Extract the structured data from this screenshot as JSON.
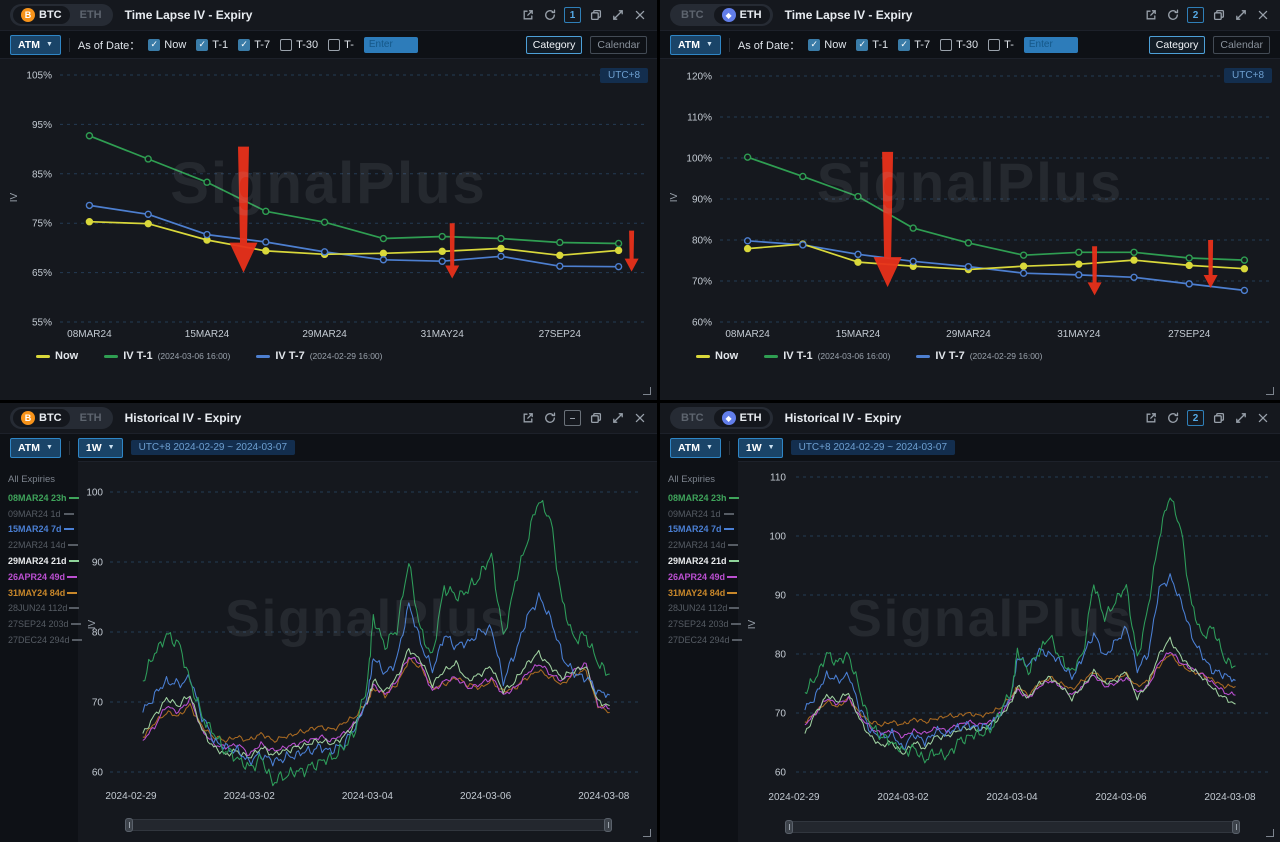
{
  "watermark": "SignalPlus",
  "colors": {
    "accent_blue": "#2f86c6",
    "arrow_red": "#e8301a",
    "panel_bg": "#15181e",
    "now_yellow": "#d9d83b",
    "t1_green": "#2f9e52",
    "t7_blue": "#4d7fd0"
  },
  "panels": {
    "tl": {
      "coin_btc": "BTC",
      "coin_eth": "ETH",
      "active_coin": "BTC",
      "title": "Time Lapse IV - Expiry",
      "badge": "1",
      "utc": "UTC+8"
    },
    "tr": {
      "coin_btc": "BTC",
      "coin_eth": "ETH",
      "active_coin": "ETH",
      "title": "Time Lapse IV - Expiry",
      "badge": "2",
      "utc": "UTC+8"
    },
    "bl": {
      "coin_btc": "BTC",
      "coin_eth": "ETH",
      "active_coin": "BTC",
      "title": "Historical IV - Expiry",
      "badge": "–"
    },
    "br": {
      "coin_btc": "BTC",
      "coin_eth": "ETH",
      "active_coin": "ETH",
      "title": "Historical IV - Expiry",
      "badge": "2"
    }
  },
  "timelapse_toolbar": {
    "atm": "ATM",
    "as_of_date": "As of Date：",
    "options": [
      {
        "label": "Now",
        "checked": true
      },
      {
        "label": "T-1",
        "checked": true
      },
      {
        "label": "T-7",
        "checked": true
      },
      {
        "label": "T-30",
        "checked": false
      },
      {
        "label": "T-",
        "checked": false
      }
    ],
    "enter_placeholder": "Enter",
    "category": "Category",
    "calendar": "Calendar",
    "active_view": "Category"
  },
  "historical_toolbar": {
    "atm": "ATM",
    "period": "1W",
    "range": "UTC+8 2024-02-29 ~ 2024-03-07"
  },
  "timelapse_legend": [
    {
      "label": "Now",
      "sub": "",
      "color": "#d9d83b"
    },
    {
      "label": "IV T-1",
      "sub": "(2024-03-06 16:00)",
      "color": "#2f9e52"
    },
    {
      "label": "IV T-7",
      "sub": "(2024-02-29 16:00)",
      "color": "#4d7fd0"
    }
  ],
  "expiry_list": {
    "header": "All Expiries",
    "items": [
      {
        "label": "08MAR24 23h",
        "color": "#3fa45b",
        "dash": "#3fa45b",
        "selected": true
      },
      {
        "label": "09MAR24 1d",
        "color": "#565c64",
        "dash": "#565c64",
        "selected": false
      },
      {
        "label": "15MAR24 7d",
        "color": "#4a7fd4",
        "dash": "#4a7fd4",
        "selected": true
      },
      {
        "label": "22MAR24 14d",
        "color": "#565c64",
        "dash": "#565c64",
        "selected": false
      },
      {
        "label": "29MAR24 21d",
        "color": "#e8eaec",
        "dash": "#8fd49a",
        "selected": true
      },
      {
        "label": "26APR24 49d",
        "color": "#bb4fd1",
        "dash": "#bb4fd1",
        "selected": true
      },
      {
        "label": "31MAY24 84d",
        "color": "#c8872a",
        "dash": "#c8872a",
        "selected": true
      },
      {
        "label": "28JUN24 112d",
        "color": "#565c64",
        "dash": "#565c64",
        "selected": false
      },
      {
        "label": "27SEP24 203d",
        "color": "#565c64",
        "dash": "#565c64",
        "selected": false
      },
      {
        "label": "27DEC24 294d",
        "color": "#565c64",
        "dash": "#565c64",
        "selected": false
      }
    ]
  },
  "chart_data": [
    {
      "id": "tl",
      "type": "line",
      "title": "Time Lapse IV - Expiry (BTC, ATM)",
      "ylabel": "IV",
      "ylim": [
        55,
        105
      ],
      "grid": true,
      "legend_position": "bottom",
      "yticks": [
        "105%",
        "95%",
        "85%",
        "75%",
        "65%",
        "55%"
      ],
      "ytick_values": [
        105,
        95,
        85,
        75,
        65,
        55
      ],
      "x_categories": [
        "08MAR24",
        "09MAR24",
        "15MAR24",
        "22MAR24",
        "29MAR24",
        "26APR24",
        "31MAY24",
        "28JUN24",
        "27SEP24",
        "27DEC24"
      ],
      "x_tick_idx": [
        0,
        2,
        4,
        6,
        8
      ],
      "x_tick_labels": [
        "08MAR24",
        "15MAR24",
        "29MAR24",
        "31MAY24",
        "27SEP24"
      ],
      "series": [
        {
          "name": "Now",
          "color": "#d9d83b",
          "solid_dots": true,
          "values": [
            75.3,
            74.9,
            71.6,
            69.4,
            68.7,
            68.9,
            69.3,
            69.9,
            68.5,
            69.5
          ]
        },
        {
          "name": "IV T-1(2024-03-06 16:00)",
          "color": "#2f9e52",
          "solid_dots": false,
          "values": [
            92.7,
            88.0,
            83.3,
            77.4,
            75.2,
            71.9,
            72.3,
            71.9,
            71.1,
            70.9
          ]
        },
        {
          "name": "IV T-7(2024-02-29 16:00)",
          "color": "#4d7fd0",
          "solid_dots": false,
          "values": [
            78.6,
            76.8,
            72.7,
            71.2,
            69.2,
            67.6,
            67.3,
            68.3,
            66.3,
            66.2
          ]
        }
      ],
      "arrows": [
        {
          "cx_index": 1.6,
          "top": 90.5,
          "tip": 65.0,
          "size": "large"
        },
        {
          "cx_index": 5.15,
          "top": 75.0,
          "tip": 63.8,
          "size": "small"
        },
        {
          "cx_index": 8.2,
          "top": 73.5,
          "tip": 65.2,
          "size": "small"
        }
      ]
    },
    {
      "id": "tr",
      "type": "line",
      "title": "Time Lapse IV - Expiry (ETH, ATM)",
      "ylabel": "IV",
      "ylim": [
        60,
        120
      ],
      "grid": true,
      "legend_position": "bottom",
      "yticks": [
        "120%",
        "110%",
        "100%",
        "90%",
        "80%",
        "70%",
        "60%"
      ],
      "ytick_values": [
        120,
        110,
        100,
        90,
        80,
        70,
        60
      ],
      "x_categories": [
        "08MAR24",
        "09MAR24",
        "15MAR24",
        "22MAR24",
        "29MAR24",
        "26APR24",
        "31MAY24",
        "28JUN24",
        "27SEP24",
        "27DEC24"
      ],
      "x_tick_idx": [
        0,
        2,
        4,
        6,
        8
      ],
      "x_tick_labels": [
        "08MAR24",
        "15MAR24",
        "29MAR24",
        "31MAY24",
        "27SEP24"
      ],
      "series": [
        {
          "name": "Now",
          "color": "#d9d83b",
          "solid_dots": true,
          "values": [
            77.9,
            79.0,
            74.6,
            73.6,
            72.8,
            73.6,
            74.1,
            75.1,
            73.8,
            73.0
          ]
        },
        {
          "name": "IV T-1(2024-03-06 16:00)",
          "color": "#2f9e52",
          "solid_dots": false,
          "values": [
            100.2,
            95.5,
            90.6,
            82.9,
            79.3,
            76.3,
            77.0,
            77.0,
            75.6,
            75.1
          ]
        },
        {
          "name": "IV T-7(2024-02-29 16:00)",
          "color": "#4d7fd0",
          "solid_dots": false,
          "values": [
            79.8,
            78.8,
            76.5,
            74.8,
            73.5,
            71.9,
            71.5,
            70.9,
            69.3,
            67.7
          ]
        }
      ],
      "arrows": [
        {
          "cx_index": 1.45,
          "top": 101.5,
          "tip": 68.5,
          "size": "large"
        },
        {
          "cx_index": 5.2,
          "top": 78.5,
          "tip": 66.5,
          "size": "small"
        },
        {
          "cx_index": 7.3,
          "top": 80.0,
          "tip": 68.3,
          "size": "small"
        }
      ]
    },
    {
      "id": "bl",
      "type": "line",
      "title": "Historical IV - Expiry (BTC, ATM, 1W)",
      "ylabel": "IV",
      "ylim": [
        60,
        100
      ],
      "grid": true,
      "x_unit": "days since 2024-02-29 00:00 UTC+8",
      "yticks": [
        "100",
        "90",
        "80",
        "70",
        "60"
      ],
      "ytick_values": [
        100,
        90,
        80,
        70,
        60
      ],
      "x_tick_days": [
        0,
        2,
        4,
        6,
        8
      ],
      "x_tick_labels": [
        "2024-02-29",
        "2024-03-02",
        "2024-03-04",
        "2024-03-06",
        "2024-03-08"
      ],
      "x_keypoints": [
        0.2,
        0.4,
        0.6,
        0.8,
        1.0,
        1.2,
        1.4,
        1.6,
        1.8,
        2.0,
        2.2,
        2.4,
        2.6,
        2.8,
        3.0,
        3.2,
        3.4,
        3.6,
        3.8,
        4.0,
        4.1,
        4.3,
        4.5,
        4.7,
        4.9,
        5.1,
        5.3,
        5.5,
        5.7,
        5.9,
        6.1,
        6.3,
        6.5,
        6.7,
        6.9,
        7.1,
        7.3,
        7.5,
        7.7,
        7.9,
        8.1
      ],
      "series": [
        {
          "name": "08MAR24 23h",
          "color": "#2e9e5b",
          "values": [
            73,
            77,
            79.5,
            78.5,
            73,
            68,
            65.5,
            63,
            62,
            60.5,
            62,
            58.5,
            59.5,
            60,
            60.5,
            61.5,
            62,
            63.5,
            66,
            73,
            82,
            78,
            80.5,
            90,
            80,
            76.5,
            86.5,
            85,
            86,
            88,
            91,
            79,
            87,
            93,
            99,
            96,
            84,
            79,
            79.5,
            75.5,
            74
          ]
        },
        {
          "name": "15MAR24 7d",
          "color": "#4a7fd4",
          "values": [
            68.5,
            71,
            73,
            72.5,
            73.5,
            68,
            64.5,
            63.5,
            63,
            61.5,
            62.5,
            61.5,
            62,
            62.5,
            63,
            63.5,
            63,
            64,
            66.5,
            70.5,
            76.5,
            74,
            76,
            84,
            78.5,
            74.5,
            79.5,
            78,
            78.5,
            80,
            80.5,
            73,
            77,
            82,
            85,
            82,
            76.5,
            74,
            73.5,
            71.5,
            71
          ]
        },
        {
          "name": "29MAR24 21d",
          "color": "#9fd0a0",
          "values": [
            65.5,
            68,
            70.5,
            69.5,
            71,
            66,
            63.5,
            62.5,
            63,
            62,
            63.5,
            62.5,
            63,
            63.5,
            64,
            64.5,
            64,
            65,
            67,
            70,
            73,
            71.5,
            73.5,
            77.5,
            76,
            72.5,
            74.5,
            75.5,
            73,
            74,
            75,
            71.5,
            73,
            75.5,
            77,
            75,
            73.5,
            74.5,
            75,
            70,
            69.5
          ]
        },
        {
          "name": "26APR24 49d",
          "color": "#bb4fd1",
          "values": [
            64.5,
            66.5,
            69.5,
            68.5,
            70.5,
            66,
            64,
            63.5,
            64,
            62.5,
            64,
            63,
            63.5,
            64,
            64.5,
            65,
            64.5,
            65.5,
            67,
            70,
            72.5,
            71,
            73,
            76.5,
            75.5,
            71.5,
            73,
            73.5,
            72,
            72.5,
            73.5,
            71,
            72,
            74,
            75.5,
            74,
            73,
            74.5,
            75.5,
            69.5,
            69
          ]
        },
        {
          "name": "31MAY24 84d",
          "color": "#a96a22",
          "values": [
            65,
            67,
            68.5,
            68,
            69.5,
            66.5,
            65,
            64.5,
            65,
            64.5,
            65.5,
            64.5,
            65,
            65.5,
            66,
            66.5,
            66,
            67,
            68,
            70,
            72,
            71,
            72.5,
            76,
            75,
            72,
            72.5,
            73.5,
            72.5,
            72,
            73,
            71.5,
            72,
            73.5,
            74.5,
            73.5,
            72.5,
            74,
            74.5,
            69.5,
            68.5
          ]
        }
      ]
    },
    {
      "id": "br",
      "type": "line",
      "title": "Historical IV - Expiry (ETH, ATM, 1W)",
      "ylabel": "IV",
      "ylim": [
        60,
        110
      ],
      "grid": true,
      "x_unit": "days since 2024-02-29 00:00 UTC+8",
      "yticks": [
        "110",
        "100",
        "90",
        "80",
        "70",
        "60"
      ],
      "ytick_values": [
        110,
        100,
        90,
        80,
        70,
        60
      ],
      "x_tick_days": [
        0,
        2,
        4,
        6,
        8
      ],
      "x_tick_labels": [
        "2024-02-29",
        "2024-03-02",
        "2024-03-04",
        "2024-03-06",
        "2024-03-08"
      ],
      "x_keypoints": [
        0.2,
        0.4,
        0.6,
        0.8,
        1.0,
        1.2,
        1.4,
        1.6,
        1.8,
        2.0,
        2.2,
        2.4,
        2.6,
        2.8,
        3.0,
        3.2,
        3.4,
        3.6,
        3.8,
        4.0,
        4.1,
        4.3,
        4.5,
        4.7,
        4.9,
        5.1,
        5.3,
        5.5,
        5.7,
        5.9,
        6.1,
        6.3,
        6.5,
        6.7,
        6.9,
        7.1,
        7.3,
        7.5,
        7.7,
        7.9,
        8.1
      ],
      "series": [
        {
          "name": "08MAR24 23h",
          "color": "#2e9e5b",
          "values": [
            73.5,
            76,
            80,
            78.5,
            80,
            74,
            68,
            66,
            65,
            63.5,
            64,
            62,
            63.5,
            62.5,
            65,
            66,
            66.5,
            67,
            70.5,
            74,
            80.5,
            77,
            80.5,
            83,
            79,
            77,
            80,
            92,
            86,
            89,
            91.5,
            79,
            88,
            100,
            107,
            101,
            88,
            83,
            84.5,
            79,
            78
          ]
        },
        {
          "name": "15MAR24 7d",
          "color": "#4a7fd4",
          "values": [
            70.5,
            73,
            76.5,
            75.5,
            76.5,
            71,
            67,
            66,
            66.5,
            64,
            66.5,
            65,
            67,
            66.5,
            67.5,
            68,
            67.5,
            68,
            70,
            73.5,
            79.5,
            78,
            80.5,
            80,
            78.5,
            76,
            79.5,
            83.5,
            79.5,
            82,
            84.5,
            77.5,
            80,
            91,
            93,
            89,
            83,
            79.5,
            77,
            76.5,
            75.5
          ]
        },
        {
          "name": "29MAR24 21d",
          "color": "#9fd0a0",
          "values": [
            66.5,
            70,
            73,
            72,
            73.5,
            69,
            66,
            64.5,
            65,
            63,
            65,
            64,
            66,
            66,
            67,
            67.5,
            67,
            68,
            69.5,
            72,
            74.5,
            72.5,
            75,
            76,
            74.5,
            72.5,
            74.5,
            77,
            75,
            75.5,
            77,
            72.5,
            75,
            80,
            82.5,
            79.5,
            77.5,
            76,
            74,
            72.5,
            71.5
          ]
        },
        {
          "name": "26APR24 49d",
          "color": "#bb4fd1",
          "values": [
            68,
            70,
            72.5,
            71.5,
            72.5,
            69.5,
            67.5,
            66.5,
            67,
            66,
            67,
            66.5,
            67.5,
            67,
            68,
            68.5,
            68,
            68.5,
            70,
            72.5,
            74,
            72.5,
            74.5,
            75.5,
            74.5,
            73,
            74.5,
            76.5,
            74.5,
            75,
            76,
            73.5,
            74.5,
            78.5,
            80.5,
            78.5,
            77.5,
            76.5,
            75,
            73.5,
            73
          ]
        },
        {
          "name": "31MAY24 84d",
          "color": "#a96a22",
          "values": [
            68.5,
            70,
            72,
            71,
            72.5,
            70,
            68.5,
            68,
            68.5,
            68,
            69,
            68.5,
            69,
            69.5,
            69.5,
            70,
            69.5,
            70,
            71,
            73,
            74.5,
            73,
            75,
            76,
            75,
            74,
            75.5,
            77,
            75.5,
            76,
            76.5,
            74.5,
            75.5,
            78,
            80,
            78,
            77,
            76.5,
            75.5,
            74.5,
            74.5
          ]
        }
      ]
    }
  ]
}
